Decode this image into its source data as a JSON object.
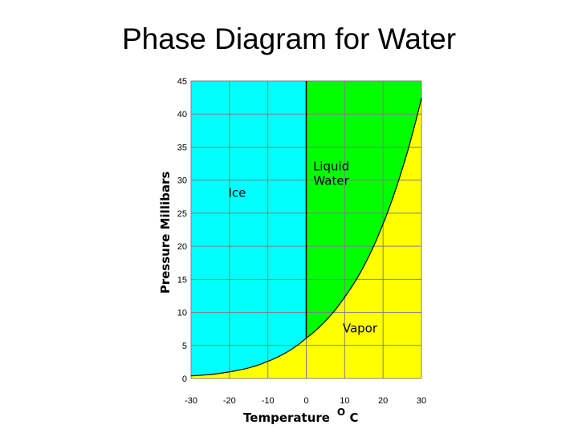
{
  "slide": {
    "title": "Phase Diagram for Water"
  },
  "chart_data": {
    "type": "area",
    "title": "Phase Diagram for Water",
    "xlabel": "Temperature",
    "xlabel_unit_sup": "O",
    "xlabel_unit": "C",
    "ylabel": "Pressure Millibars",
    "xlim": [
      -30,
      30
    ],
    "ylim": [
      0,
      45
    ],
    "x_ticks": [
      -30,
      -20,
      -10,
      0,
      10,
      20,
      30
    ],
    "y_ticks": [
      0,
      5,
      10,
      15,
      20,
      25,
      30,
      35,
      40,
      45
    ],
    "grid": true,
    "colors": {
      "ice": "#00ffff",
      "liquid": "#00ff00",
      "vapor": "#ffff00",
      "line": "#000000",
      "grid": "#808080"
    },
    "regions": [
      {
        "label": "Ice",
        "label_x": -18,
        "label_y": 27.5
      },
      {
        "label": "Liquid Water",
        "label_line1": "Liquid",
        "label_line2": "Water",
        "label_x": 6.5,
        "label_y": 31.5
      },
      {
        "label": "Vapor",
        "label_x": 14,
        "label_y": 7
      }
    ],
    "sublimation_curve": {
      "x": [
        -30,
        -25,
        -20,
        -15,
        -10,
        -5,
        0
      ],
      "y": [
        0.4,
        0.6,
        1.0,
        1.6,
        2.6,
        4.0,
        6.1
      ]
    },
    "vaporization_curve": {
      "x": [
        0,
        5,
        10,
        15,
        20,
        25,
        30
      ],
      "y": [
        6.1,
        8.7,
        12.3,
        17.0,
        23.4,
        31.7,
        42.4
      ]
    },
    "fusion_line": {
      "x": [
        0,
        0
      ],
      "y": [
        6.1,
        45
      ]
    }
  }
}
